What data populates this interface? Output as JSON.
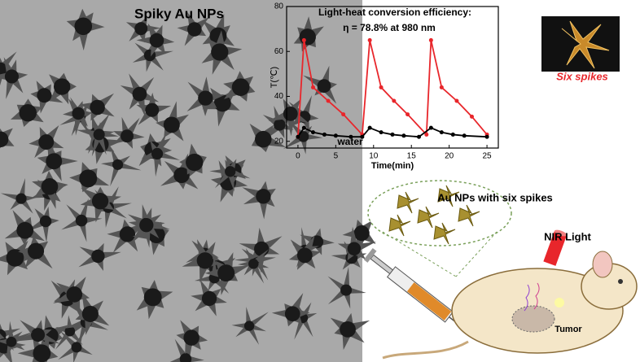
{
  "tem_label": "Spiky Au NPs",
  "chart_data": {
    "type": "line",
    "title": "Light-heat conversion efficiency:",
    "annotation": "η = 78.8% at 980 nm",
    "x_label": "Time(min)",
    "y_label": "T(℃)",
    "series": [
      {
        "name": "Six spikes",
        "color": "#e8262b",
        "x": [
          0,
          0.8,
          2,
          4,
          6,
          8.5,
          9.5,
          11,
          12.7,
          14.5,
          17,
          17.6,
          19,
          21,
          23,
          25
        ],
        "values": [
          22,
          65,
          44,
          38,
          32,
          23,
          65,
          44,
          38,
          32,
          23,
          65,
          44,
          38,
          31,
          23
        ]
      },
      {
        "name": "water",
        "color": "#000000",
        "x": [
          0,
          0.8,
          2,
          3.5,
          5,
          7,
          8.5,
          9.5,
          11,
          12.5,
          14,
          16,
          17.6,
          19,
          20.5,
          22,
          25
        ],
        "values": [
          22,
          26,
          24,
          23,
          22.5,
          22,
          22,
          26,
          24,
          23,
          22.5,
          22,
          26,
          24,
          23,
          22.5,
          22
        ]
      }
    ],
    "xlim": [
      -1.5,
      26.5
    ],
    "xticks": [
      0,
      5,
      10,
      15,
      20,
      25
    ],
    "ylim": [
      17,
      80
    ],
    "yticks": [
      20,
      40,
      60,
      80
    ]
  },
  "scheme": {
    "particles": "Au NPs with six spikes",
    "light": "NIR Light",
    "tumor": "Tumor"
  }
}
